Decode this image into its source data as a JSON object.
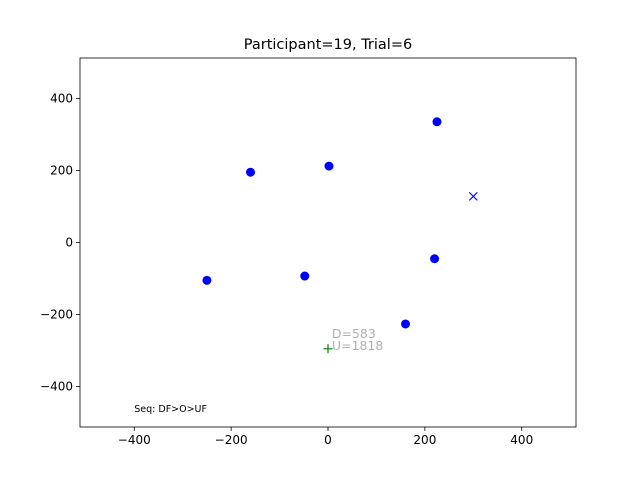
{
  "chart_data": {
    "type": "scatter",
    "title": "Participant=19, Trial=6",
    "xlabel": "",
    "ylabel": "",
    "xlim": [
      -512,
      512
    ],
    "ylim": [
      -512,
      512
    ],
    "xticks": [
      -400,
      -200,
      0,
      200,
      400
    ],
    "yticks": [
      -400,
      -200,
      0,
      200,
      400
    ],
    "xtick_labels": [
      "−400",
      "−200",
      "0",
      "200",
      "400"
    ],
    "ytick_labels": [
      "−400",
      "−200",
      "0",
      "200",
      "400"
    ],
    "grid": false,
    "series": [
      {
        "marker": "circle",
        "color": "#0000ff",
        "x": [
          -250,
          -160,
          2,
          225,
          -48,
          220,
          160
        ],
        "y": [
          -105,
          195,
          212,
          335,
          -93,
          -45,
          -226
        ]
      },
      {
        "marker": "x",
        "color": "#0000ff",
        "x": [
          300
        ],
        "y": [
          128
        ]
      },
      {
        "marker": "plus",
        "color": "#008000",
        "x": [
          0
        ],
        "y": [
          -295
        ]
      }
    ],
    "annotations": [
      {
        "text": "D=583",
        "x": 8,
        "y": -265,
        "color": "#b0b0b0"
      },
      {
        "text": "U=1818",
        "x": 8,
        "y": -298,
        "color": "#b0b0b0"
      },
      {
        "text": "Seq: DF>O>UF",
        "x": -400,
        "y": -470,
        "color": "#000000"
      }
    ]
  }
}
